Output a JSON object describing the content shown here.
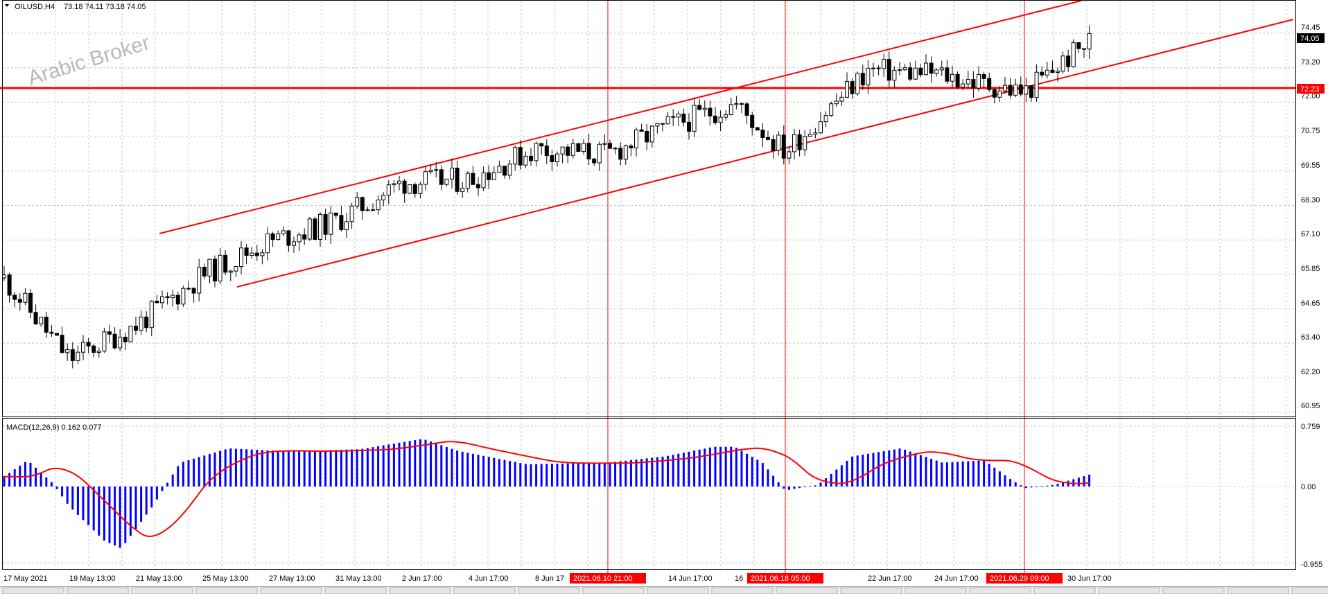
{
  "header": {
    "symbol": "OILUSD,H4",
    "ohlc": "73.18 74.11 73.18 74.05",
    "watermark": "Arabic Broker"
  },
  "price_axis": {
    "ticks": [
      "74.45",
      "73.20",
      "72.00",
      "70.75",
      "69.55",
      "68.30",
      "67.10",
      "65.85",
      "64.65",
      "63.40",
      "62.20",
      "60.95"
    ],
    "current_price": "74.05",
    "level_label": "72.23"
  },
  "macd": {
    "label": "MACD(12,26,9) 0.162 0.077",
    "ticks": [
      "0.759",
      "0.00",
      "-0.955"
    ]
  },
  "time_axis": {
    "ticks": [
      "17 May 2021",
      "19 May 13:00",
      "21 May 13:00",
      "25 May 13:00",
      "27 May 13:00",
      "31 May 13:00",
      "2 Jun 17:00",
      "4 Jun 17:00",
      "8 Jun 17",
      "14 Jun 17:00",
      "16",
      "22 Jun 17:00",
      "24 Jun 17:00",
      "30 Jun 17:00"
    ],
    "markers": [
      "2021.06.10 21:00",
      "2021.06.18 05:00",
      "2021.06.29 09:00"
    ]
  },
  "colors": {
    "bull_candle": "#ffffff",
    "bear_candle": "#000000",
    "channel": "#ff0000",
    "macd_histogram": "#0000ff",
    "signal_line": "#ff0000",
    "grid": "#c0c0c0"
  },
  "chart_data": [
    {
      "type": "candlestick",
      "title": "OILUSD,H4",
      "ylim": [
        60.5,
        75.0
      ],
      "horizontal_level": 72.23,
      "close_path": [
        {
          "x": "17 May 2021",
          "y": 65.6
        },
        {
          "x": "19 May 13:00",
          "y": 62.7
        },
        {
          "x": "21 May 13:00",
          "y": 63.9
        },
        {
          "x": "25 May 13:00",
          "y": 65.7
        },
        {
          "x": "27 May 13:00",
          "y": 66.9
        },
        {
          "x": "31 May 13:00",
          "y": 67.6
        },
        {
          "x": "2 Jun 17:00",
          "y": 69.0
        },
        {
          "x": "4 Jun 17:00",
          "y": 69.1
        },
        {
          "x": "8 Jun 17",
          "y": 70.2
        },
        {
          "x": "2021.06.10 21:00",
          "y": 70.0
        },
        {
          "x": "14 Jun 17:00",
          "y": 71.0
        },
        {
          "x": "16",
          "y": 71.8
        },
        {
          "x": "2021.06.18 05:00",
          "y": 70.1
        },
        {
          "x": "22 Jun 17:00",
          "y": 73.0
        },
        {
          "x": "24 Jun 17:00",
          "y": 72.9
        },
        {
          "x": "2021.06.29 09:00",
          "y": 72.2
        },
        {
          "x": "30 Jun 17:00",
          "y": 74.05
        }
      ]
    },
    {
      "type": "bar",
      "title": "MACD(12,26,9)",
      "ylim": [
        -0.955,
        0.759
      ],
      "main": 0.162,
      "signal": 0.077
    }
  ]
}
